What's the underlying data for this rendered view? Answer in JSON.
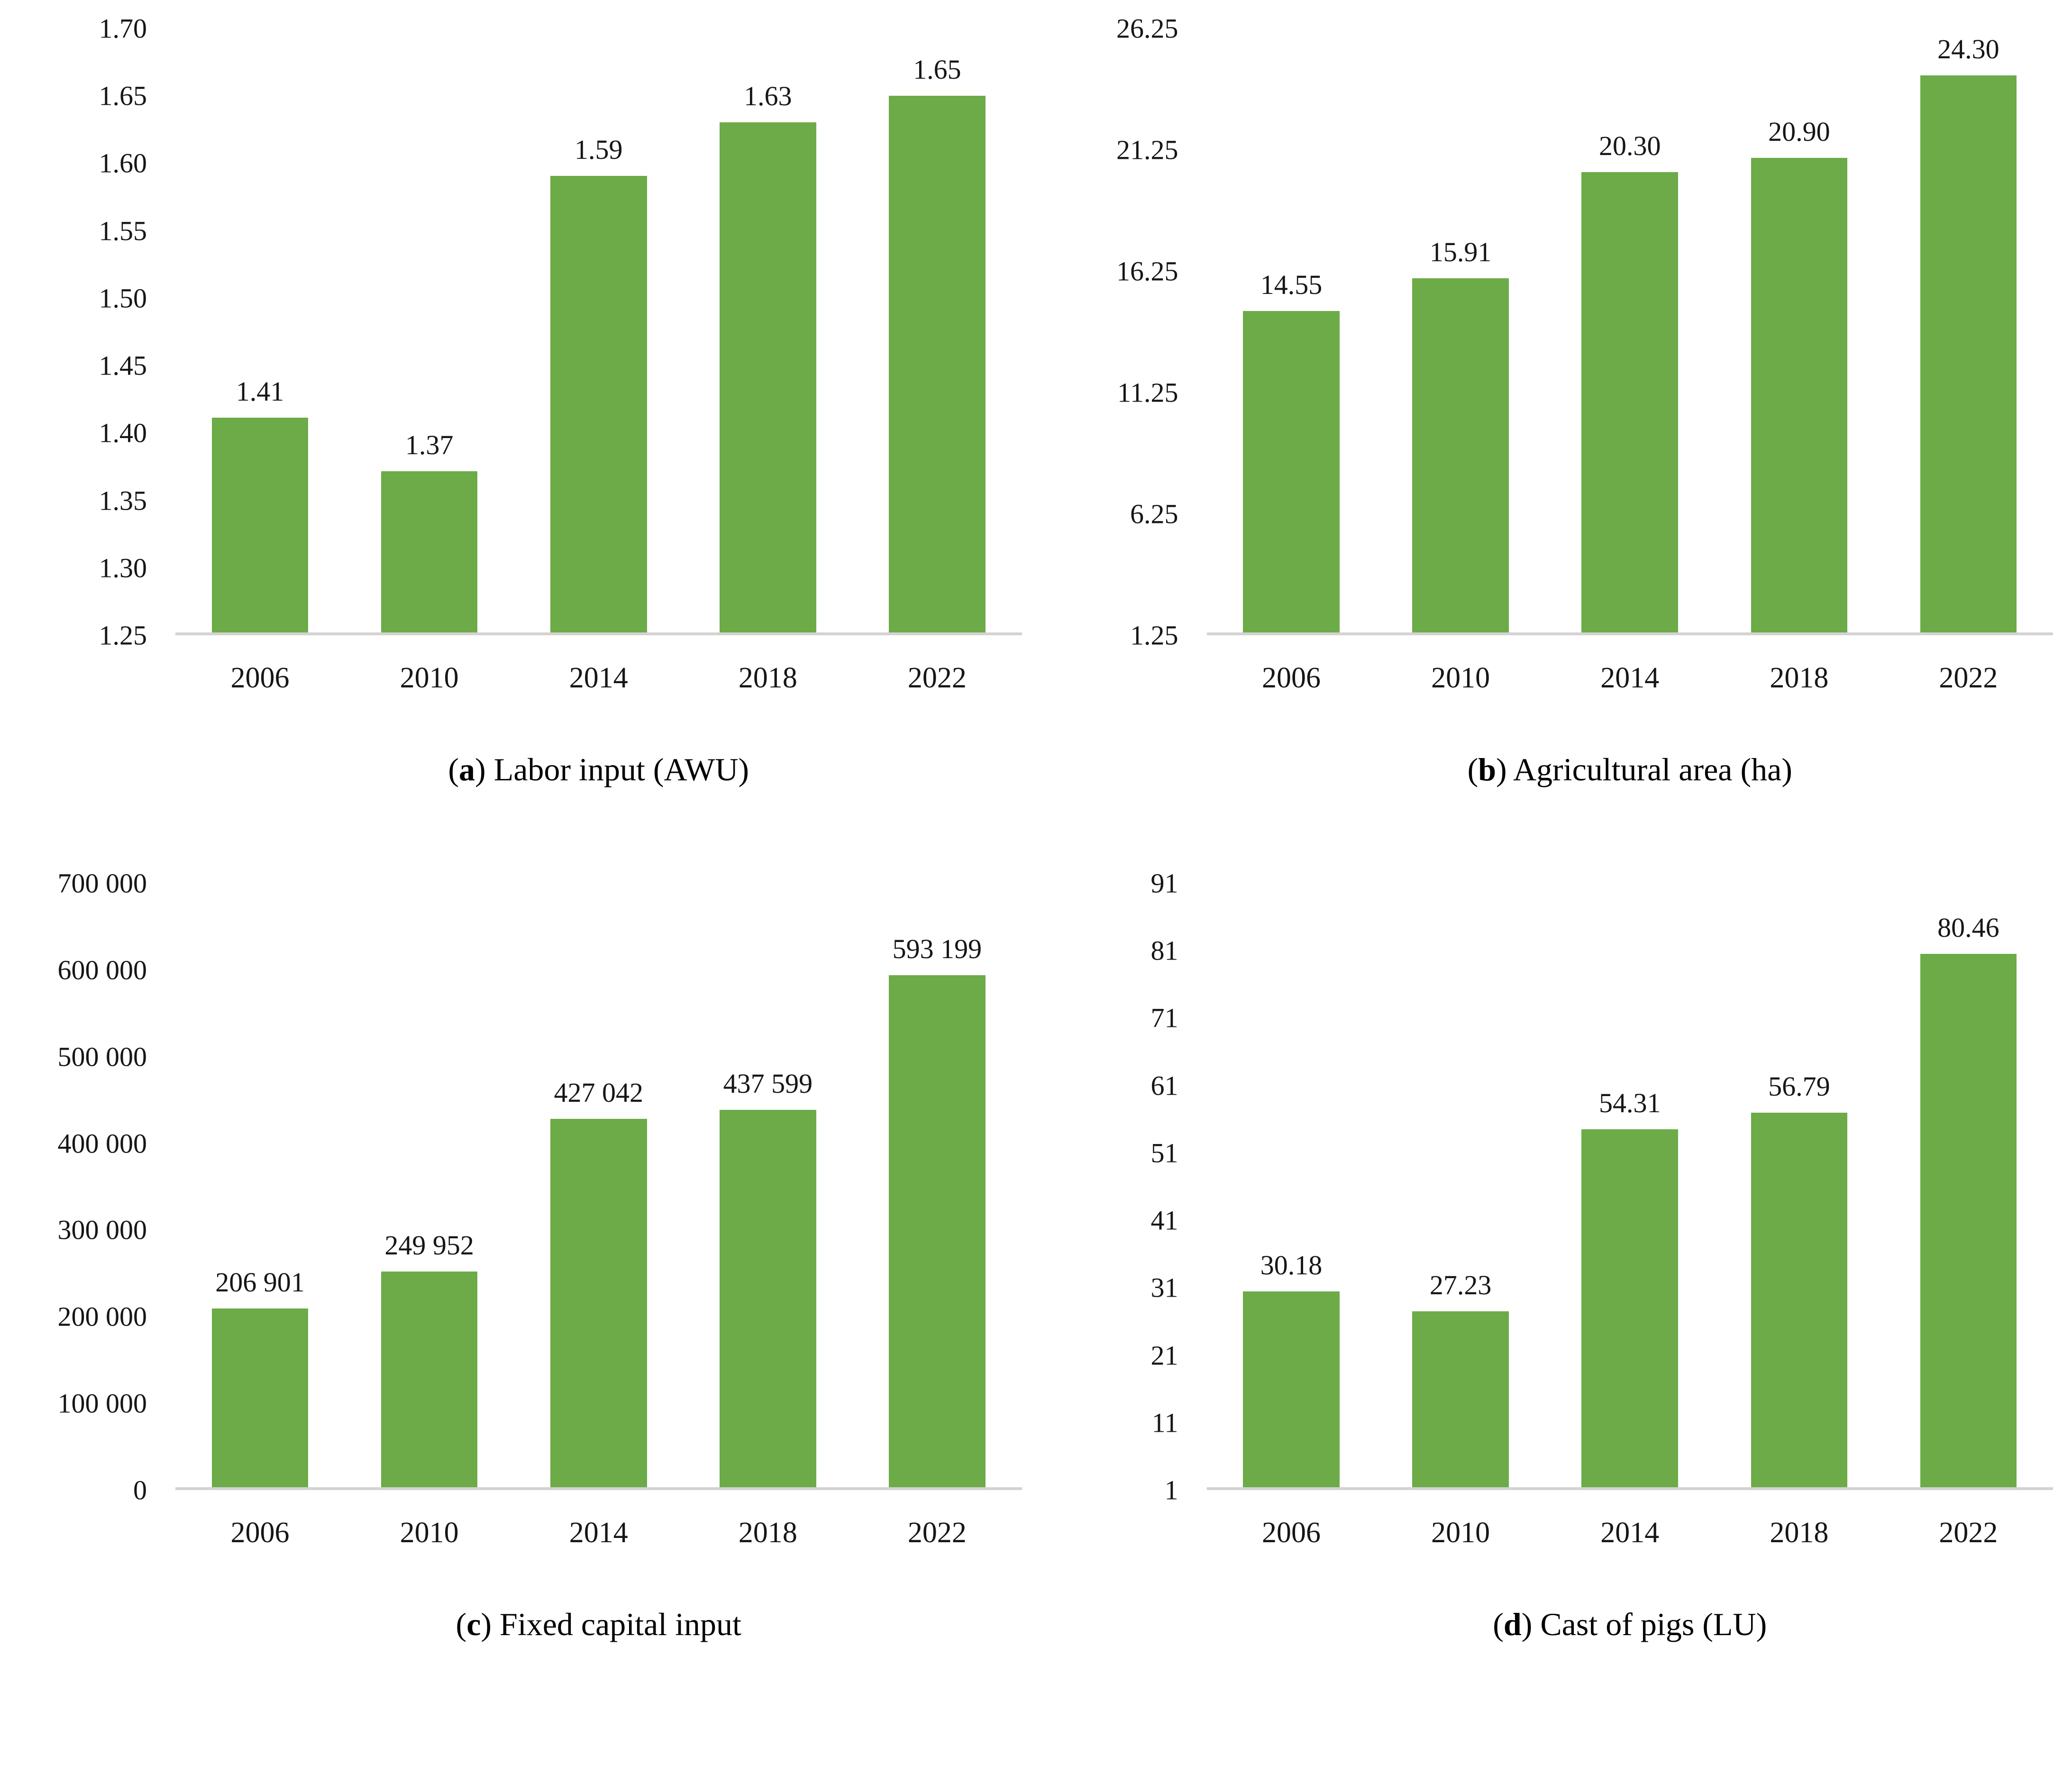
{
  "figure": {
    "background": "#ffffff",
    "panel_order": [
      "a",
      "b",
      "c",
      "d"
    ]
  },
  "colors": {
    "bar": "#6CAB47",
    "axis_line": "#d3d3d3",
    "text": "#161616"
  },
  "chart_data": [
    {
      "type": "bar",
      "panel_letter": "a",
      "caption": "Labor input (AWU)",
      "categories": [
        "2006",
        "2010",
        "2014",
        "2018",
        "2022"
      ],
      "values": [
        1.41,
        1.37,
        1.59,
        1.63,
        1.65
      ],
      "value_labels": [
        "1.41",
        "1.37",
        "1.59",
        "1.63",
        "1.65"
      ],
      "ylim": [
        1.25,
        1.7
      ],
      "yticks": [
        "1.70",
        "1.65",
        "1.60",
        "1.55",
        "1.50",
        "1.45",
        "1.40",
        "1.35",
        "1.30",
        "1.25"
      ],
      "grid": false,
      "legend": "none"
    },
    {
      "type": "bar",
      "panel_letter": "b",
      "caption": "Agricultural area (ha)",
      "categories": [
        "2006",
        "2010",
        "2014",
        "2018",
        "2022"
      ],
      "values": [
        14.55,
        15.91,
        20.3,
        20.9,
        24.3
      ],
      "value_labels": [
        "14.55",
        "15.91",
        "20.30",
        "20.90",
        "24.30"
      ],
      "ylim": [
        1.25,
        26.25
      ],
      "yticks": [
        "26.25",
        "21.25",
        "16.25",
        "11.25",
        "6.25",
        "1.25"
      ],
      "grid": false,
      "legend": "none"
    },
    {
      "type": "bar",
      "panel_letter": "c",
      "caption": "Fixed capital input",
      "categories": [
        "2006",
        "2010",
        "2014",
        "2018",
        "2022"
      ],
      "values": [
        206901,
        249952,
        427042,
        437599,
        593199
      ],
      "value_labels": [
        "206 901",
        "249 952",
        "427 042",
        "437 599",
        "593 199"
      ],
      "ylim": [
        0,
        700000
      ],
      "yticks": [
        "700 000",
        "600 000",
        "500 000",
        "400 000",
        "300 000",
        "200 000",
        "100 000",
        "0"
      ],
      "grid": false,
      "legend": "none"
    },
    {
      "type": "bar",
      "panel_letter": "d",
      "caption": "Cast of pigs (LU)",
      "categories": [
        "2006",
        "2010",
        "2014",
        "2018",
        "2022"
      ],
      "values": [
        30.18,
        27.23,
        54.31,
        56.79,
        80.46
      ],
      "value_labels": [
        "30.18",
        "27.23",
        "54.31",
        "56.79",
        "80.46"
      ],
      "ylim": [
        1,
        91
      ],
      "yticks": [
        "91",
        "81",
        "71",
        "61",
        "51",
        "41",
        "31",
        "21",
        "11",
        "1"
      ],
      "grid": false,
      "legend": "none"
    }
  ]
}
